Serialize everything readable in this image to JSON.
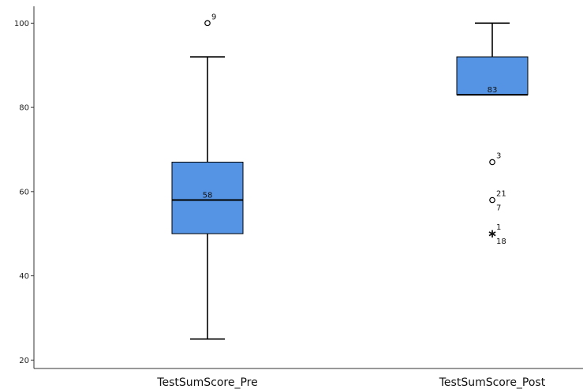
{
  "chart_data": {
    "type": "boxplot",
    "title": "",
    "xlabel": "",
    "ylabel": "",
    "ylim": [
      18,
      104
    ],
    "yticks": [
      20,
      40,
      60,
      80,
      100
    ],
    "box_color": "#5594e5",
    "grid": false,
    "categories": [
      "TestSumScore_Pre",
      "TestSumScore_Post"
    ],
    "boxes": [
      {
        "name": "TestSumScore_Pre",
        "whisker_low": 25,
        "q1": 50,
        "median": 58,
        "q3": 67,
        "whisker_high": 92,
        "median_label": "58",
        "outliers": [
          {
            "value": 100,
            "marker": "circle",
            "labels": [
              "9"
            ]
          }
        ]
      },
      {
        "name": "TestSumScore_Post",
        "whisker_low": 83,
        "q1": 83,
        "median": 83,
        "q3": 92,
        "whisker_high": 100,
        "median_label": "83",
        "outliers": [
          {
            "value": 67,
            "marker": "circle",
            "labels": [
              "3"
            ]
          },
          {
            "value": 58,
            "marker": "circle",
            "labels": [
              "21",
              "7"
            ]
          },
          {
            "value": 50,
            "marker": "star",
            "labels": [
              "1",
              "18"
            ]
          }
        ]
      }
    ]
  }
}
